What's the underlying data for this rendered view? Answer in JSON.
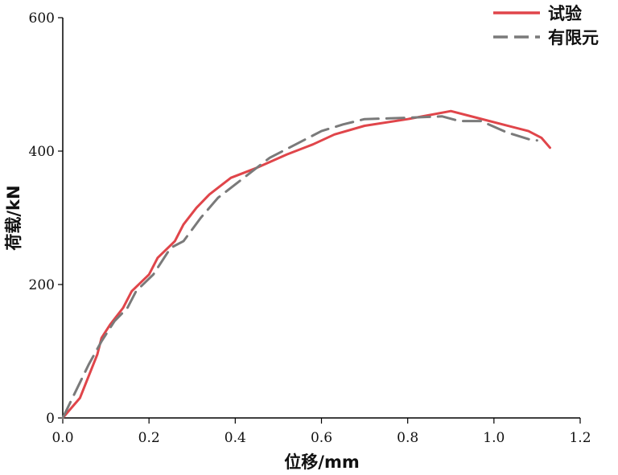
{
  "chart_data": {
    "type": "line",
    "title": "",
    "xlabel": "位移/mm",
    "ylabel": "荷载/kN",
    "xlim": [
      0,
      1.2
    ],
    "ylim": [
      0,
      600
    ],
    "x_ticks": [
      0.0,
      0.2,
      0.4,
      0.6,
      0.8,
      1.0,
      1.2
    ],
    "x_tick_labels": [
      "0.0",
      "0.2",
      "0.4",
      "0.6",
      "0.8",
      "1.0",
      "1.2"
    ],
    "y_ticks": [
      0,
      200,
      400,
      600
    ],
    "y_tick_labels": [
      "0",
      "200",
      "400",
      "600"
    ],
    "grid": false,
    "legend_position": "top-right",
    "series": [
      {
        "name": "试验",
        "color": "#e0454a",
        "style": "solid",
        "points": [
          [
            0.0,
            0
          ],
          [
            0.04,
            30
          ],
          [
            0.08,
            95
          ],
          [
            0.09,
            120
          ],
          [
            0.11,
            140
          ],
          [
            0.14,
            165
          ],
          [
            0.16,
            190
          ],
          [
            0.2,
            215
          ],
          [
            0.22,
            240
          ],
          [
            0.26,
            265
          ],
          [
            0.28,
            290
          ],
          [
            0.31,
            315
          ],
          [
            0.34,
            335
          ],
          [
            0.39,
            360
          ],
          [
            0.45,
            375
          ],
          [
            0.52,
            395
          ],
          [
            0.58,
            410
          ],
          [
            0.63,
            425
          ],
          [
            0.7,
            438
          ],
          [
            0.8,
            448
          ],
          [
            0.9,
            460
          ],
          [
            0.96,
            450
          ],
          [
            1.02,
            440
          ],
          [
            1.08,
            430
          ],
          [
            1.11,
            420
          ],
          [
            1.13,
            405
          ]
        ]
      },
      {
        "name": "有限元",
        "color": "#7a7a7a",
        "style": "dashed",
        "points": [
          [
            0.0,
            0
          ],
          [
            0.03,
            40
          ],
          [
            0.06,
            80
          ],
          [
            0.09,
            115
          ],
          [
            0.12,
            145
          ],
          [
            0.15,
            165
          ],
          [
            0.17,
            190
          ],
          [
            0.21,
            215
          ],
          [
            0.25,
            255
          ],
          [
            0.28,
            265
          ],
          [
            0.32,
            300
          ],
          [
            0.36,
            330
          ],
          [
            0.42,
            360
          ],
          [
            0.48,
            390
          ],
          [
            0.54,
            410
          ],
          [
            0.6,
            430
          ],
          [
            0.65,
            440
          ],
          [
            0.7,
            448
          ],
          [
            0.8,
            450
          ],
          [
            0.88,
            452
          ],
          [
            0.92,
            445
          ],
          [
            0.97,
            445
          ],
          [
            1.03,
            428
          ],
          [
            1.08,
            418
          ],
          [
            1.1,
            416
          ]
        ]
      }
    ]
  }
}
